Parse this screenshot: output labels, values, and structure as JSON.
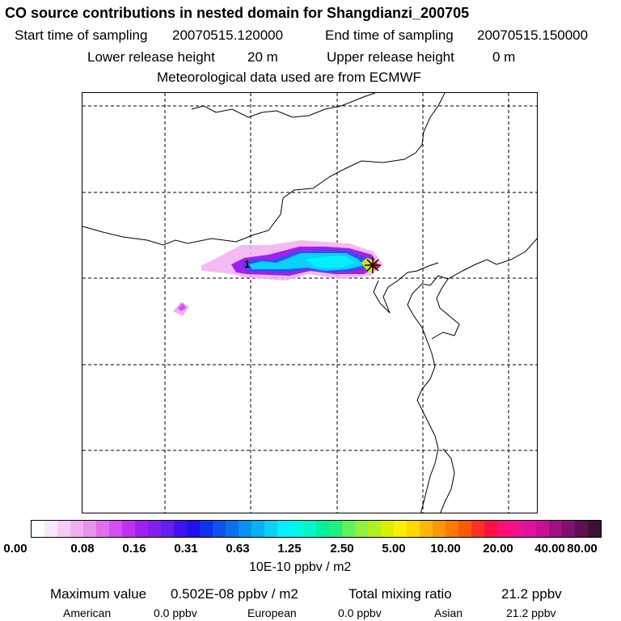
{
  "header": {
    "title": "CO  source contributions in nested domain for Shangdianzi_200705",
    "start_label": "Start time of sampling",
    "start_value": "20070515.120000",
    "end_label": "End time of sampling",
    "end_value": "20070515.150000",
    "lower_label": "Lower release height",
    "lower_value": "20 m",
    "upper_label": "Upper release height",
    "upper_value": "0 m",
    "met": "Meteorological data used are from ECMWF"
  },
  "map": {
    "marker_label": "1",
    "grid": "dashed"
  },
  "colorbar": {
    "tick_labels": [
      "0.00",
      "0.08",
      "0.16",
      "0.31",
      "0.63",
      "1.25",
      "2.50",
      "5.00",
      "10.00",
      "20.00",
      "40.00",
      "80.00"
    ],
    "unit": "10E-10 ppbv / m2",
    "colors": [
      "#ffffff",
      "#fbe6fb",
      "#f6ccf6",
      "#f0b0f0",
      "#e792ec",
      "#e070ec",
      "#d050f0",
      "#c030f0",
      "#a020f0",
      "#8020f0",
      "#6020f0",
      "#4010f0",
      "#2010f0",
      "#1030f0",
      "#1050f0",
      "#0a70f0",
      "#0a90f5",
      "#0ab0f8",
      "#0ad0fa",
      "#00f0ff",
      "#00f8e8",
      "#00f8c8",
      "#00f0a0",
      "#20f080",
      "#60f060",
      "#90f040",
      "#b0f020",
      "#d8f000",
      "#f8f000",
      "#ffd800",
      "#ffb800",
      "#ff9800",
      "#ff7800",
      "#ff5800",
      "#ff3020",
      "#ff1040",
      "#ff1070",
      "#f01090",
      "#e010a0",
      "#c81090",
      "#a01080",
      "#801070",
      "#601050",
      "#401030"
    ]
  },
  "footer": {
    "max_label": "Maximum value",
    "max_value": "0.502E-08 ppbv / m2",
    "total_label": "Total mixing ratio",
    "total_value": "21.2 ppbv",
    "american_label": "American",
    "american_value": "0.0 ppbv",
    "european_label": "European",
    "european_value": "0.0 ppbv",
    "asian_label": "Asian",
    "asian_value": "21.2 ppbv"
  }
}
